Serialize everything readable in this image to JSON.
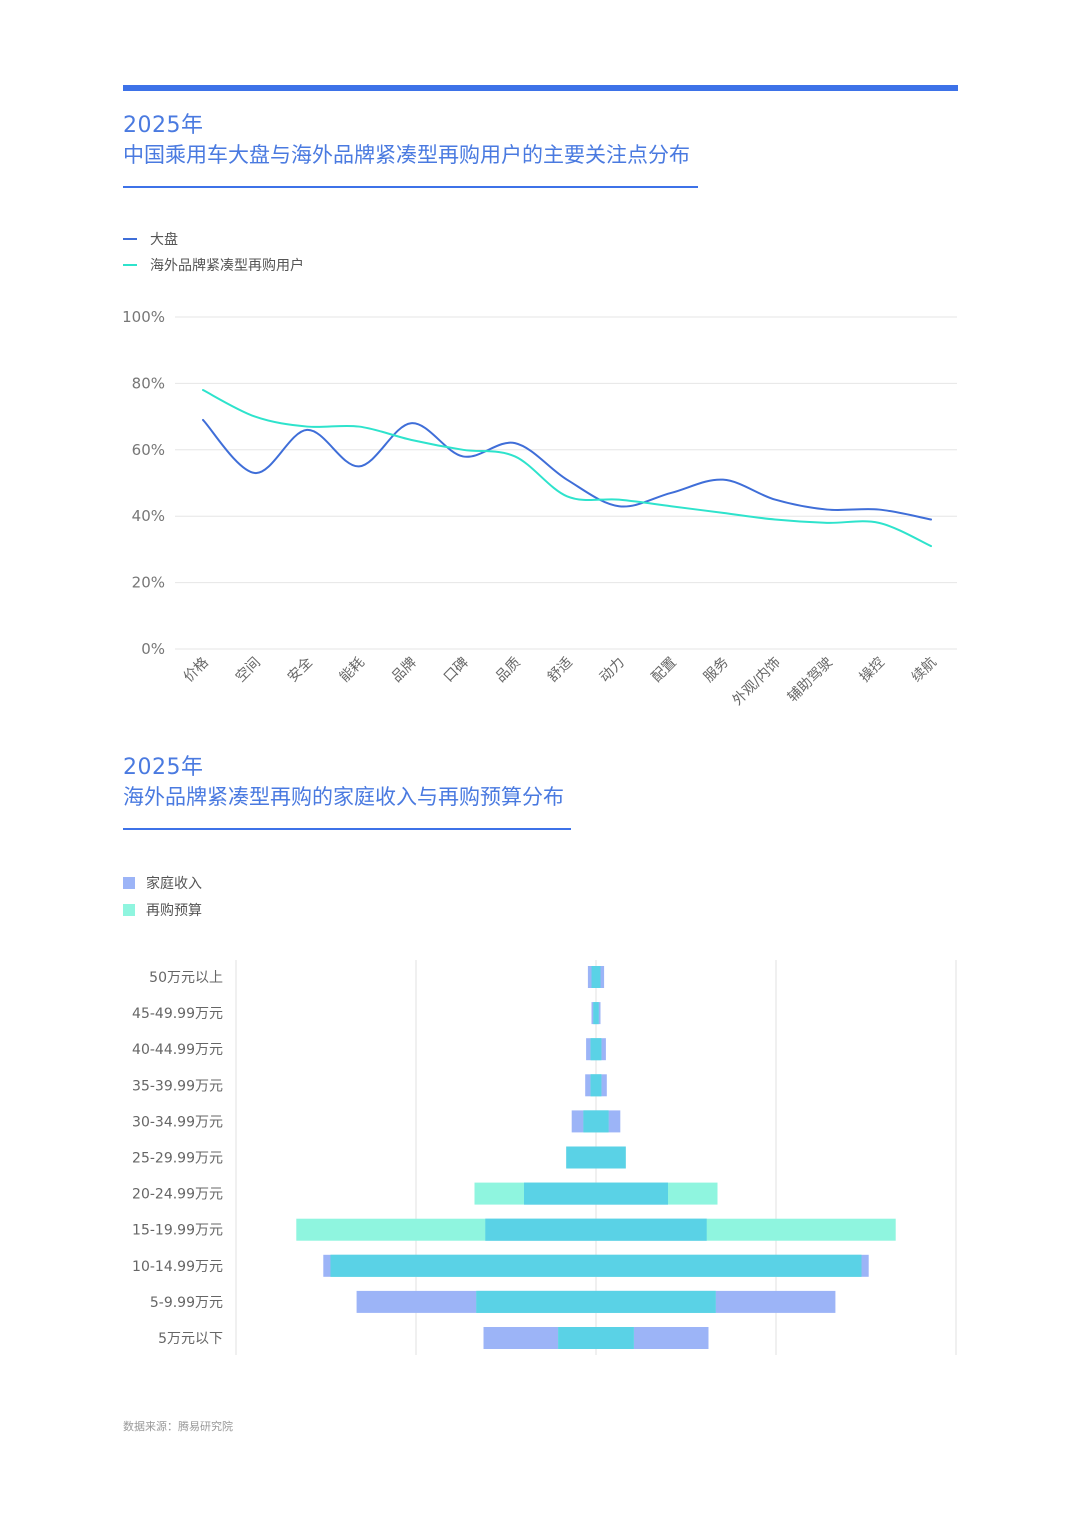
{
  "section1": {
    "year": "2025年",
    "title": "中国乘用车大盘与海外品牌紧凑型再购用户的主要关注点分布"
  },
  "section2": {
    "year": "2025年",
    "title": "海外品牌紧凑型再购的家庭收入与再购预算分布"
  },
  "colors": {
    "accent": "#3d72e8",
    "series_market": "#3f6ed8",
    "series_overseas": "#2ee3cc",
    "income": "#9cb4f7",
    "budget": "#8ff5df",
    "overlap": "#5ad2e6"
  },
  "chart_data": [
    {
      "type": "line",
      "categories": [
        "价格",
        "空间",
        "安全",
        "能耗",
        "品牌",
        "口碑",
        "品质",
        "舒适",
        "动力",
        "配置",
        "服务",
        "外观/内饰",
        "辅助驾驶",
        "操控",
        "续航"
      ],
      "series": [
        {
          "name": "大盘",
          "values": [
            69,
            53,
            66,
            55,
            68,
            58,
            62,
            51,
            43,
            47,
            51,
            45,
            42,
            42,
            39
          ]
        },
        {
          "name": "海外品牌紧凑型再购用户",
          "values": [
            78,
            70,
            67,
            67,
            63,
            60,
            58,
            46,
            45,
            43,
            41,
            39,
            38,
            38,
            31
          ]
        }
      ],
      "y_ticks": [
        "0%",
        "20%",
        "40%",
        "60%",
        "80%",
        "100%"
      ],
      "ylim": [
        0,
        100
      ],
      "grid": true,
      "legend": "top-left"
    },
    {
      "type": "bar",
      "orientation": "horizontal-centered",
      "categories": [
        "50万元以上",
        "45-49.99万元",
        "40-44.99万元",
        "35-39.99万元",
        "30-34.99万元",
        "25-29.99万元",
        "20-24.99万元",
        "15-19.99万元",
        "10-14.99万元",
        "5-9.99万元",
        "5万元以下"
      ],
      "series": [
        {
          "name": "家庭收入",
          "values": [
            0.9,
            0.5,
            1.1,
            1.2,
            2.7,
            3.3,
            8.0,
            12.3,
            30.3,
            26.6,
            12.5
          ]
        },
        {
          "name": "再购预算",
          "values": [
            0.5,
            0.3,
            0.6,
            0.6,
            1.4,
            3.3,
            13.5,
            33.3,
            29.5,
            13.3,
            4.2
          ]
        }
      ],
      "legend": "top-left"
    }
  ],
  "footer": {
    "source": "数据来源：腾易研究院"
  }
}
